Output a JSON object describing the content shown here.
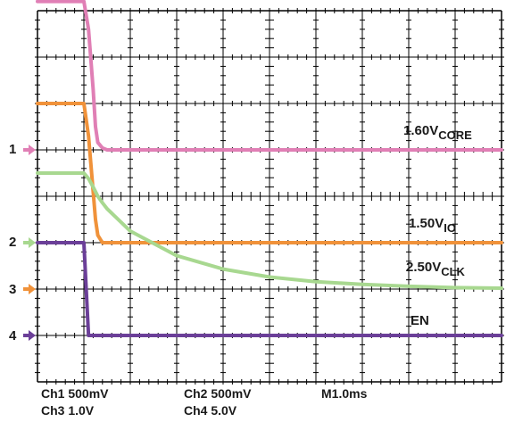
{
  "chart_data": {
    "type": "line",
    "x": [
      -1.0,
      0.0,
      0.1,
      0.2,
      0.25,
      0.3,
      0.4,
      0.5,
      1.0,
      2.0,
      3.0,
      4.0,
      5.0,
      6.0,
      7.0,
      8.0,
      9.0
    ],
    "xunit": "ms",
    "timebase": "M1.0ms",
    "xlim": [
      -1.0,
      9.0
    ],
    "ylim_divisions": [
      -4,
      4
    ],
    "grid": true,
    "series": [
      {
        "name": "1.60V",
        "name_sub": "CORE",
        "channel": "1",
        "color": "#e07fb5",
        "marker_color": "#e07fb5",
        "label_color": "#1a1a1a",
        "values": [
          1.6,
          1.6,
          1.3,
          0.65,
          0.25,
          0.08,
          0.02,
          0.0,
          0.0,
          0.0,
          0.0,
          0.0,
          0.0,
          0.0,
          0.0,
          0.0,
          0.0
        ]
      },
      {
        "name": "1.50V",
        "name_sub": "IO",
        "channel": "2",
        "color": "#f0923a",
        "marker_color": "#a8d890",
        "label_color": "#1a1a1a",
        "values": [
          1.5,
          1.5,
          1.15,
          0.55,
          0.25,
          0.08,
          0.0,
          0.0,
          0.0,
          0.0,
          0.0,
          0.0,
          0.0,
          0.0,
          0.0,
          0.0,
          0.0
        ]
      },
      {
        "name": "2.50V",
        "name_sub": "CLK",
        "channel": "3",
        "color": "#a8d890",
        "marker_color": "#f0923a",
        "label_color": "#1a1a1a",
        "values": [
          2.5,
          2.5,
          2.38,
          2.2,
          2.1,
          2.0,
          1.86,
          1.73,
          1.25,
          0.72,
          0.43,
          0.26,
          0.16,
          0.1,
          0.06,
          0.03,
          0.02
        ]
      },
      {
        "name": "EN",
        "name_sub": "",
        "channel": "4",
        "color": "#6b3f98",
        "marker_color": "#6b3f98",
        "label_color": "#1a1a1a",
        "values": [
          10.0,
          10.0,
          0.0,
          0.0,
          0.0,
          0.0,
          0.0,
          0.0,
          0.0,
          0.0,
          0.0,
          0.0,
          0.0,
          0.0,
          0.0,
          0.0,
          0.0
        ]
      }
    ],
    "channel_settings": [
      {
        "text": "Ch1 500mV"
      },
      {
        "text": "Ch3 1.0V"
      },
      {
        "text": "Ch2 500mV"
      },
      {
        "text": "Ch4 5.0V"
      },
      {
        "text": "M1.0ms"
      }
    ]
  }
}
